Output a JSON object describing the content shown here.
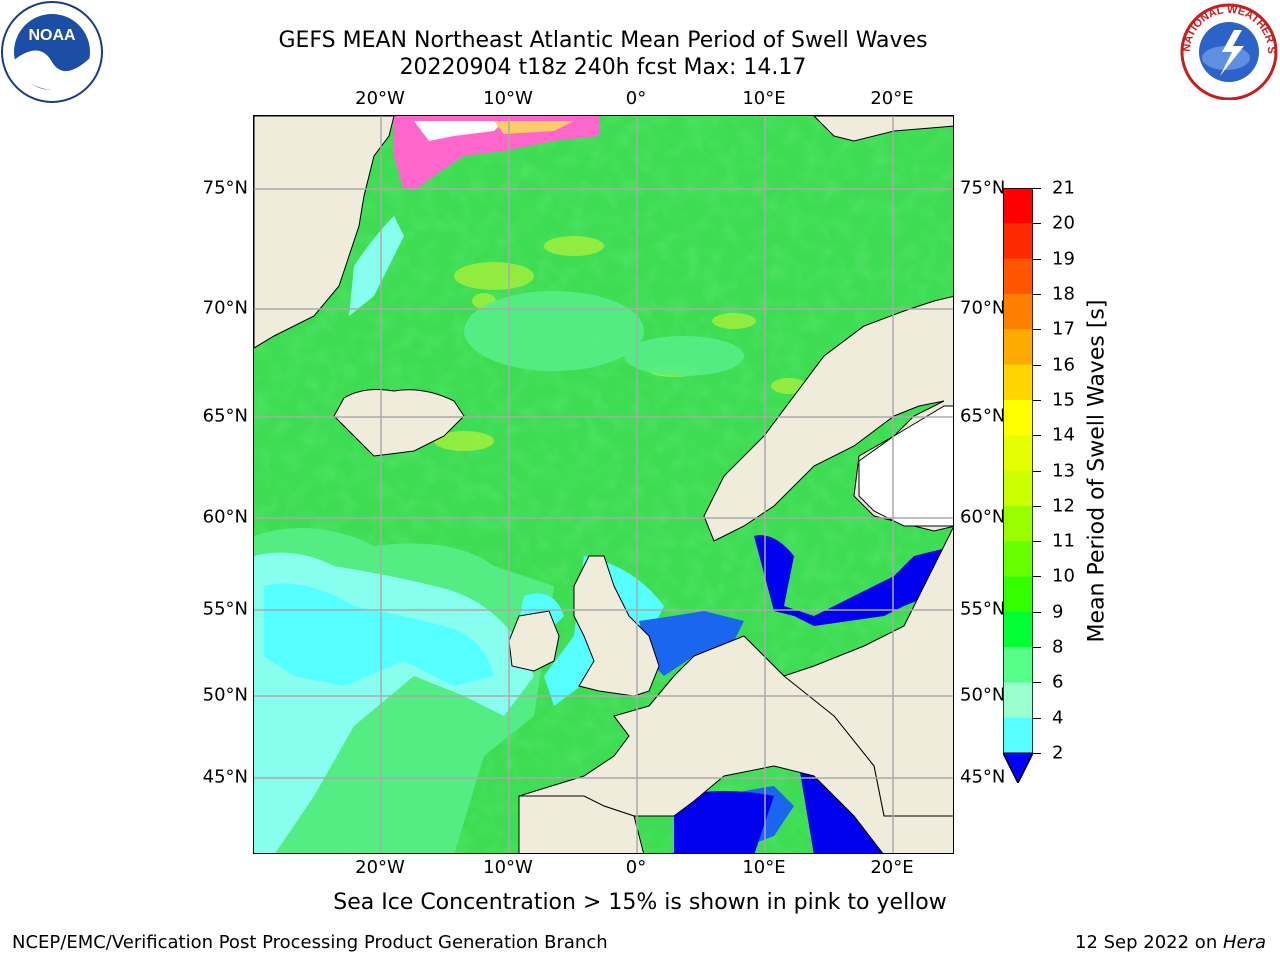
{
  "title": {
    "line1": "GEFS MEAN Northeast Atlantic Mean Period of Swell Waves",
    "line2": "20220904 t18z 240h fcst   Max: 14.17"
  },
  "axes": {
    "lon_labels": [
      "20°W",
      "10°W",
      "0°",
      "10°E",
      "20°E"
    ],
    "lat_labels": [
      "75°N",
      "70°N",
      "65°N",
      "60°N",
      "55°N",
      "50°N",
      "45°N"
    ]
  },
  "colorbar": {
    "label": "Mean Period of Swell Waves [s]",
    "ticks": [
      "21",
      "20",
      "19",
      "18",
      "17",
      "16",
      "15",
      "14",
      "13",
      "12",
      "11",
      "10",
      "9",
      "8",
      "6",
      "4",
      "2"
    ],
    "colors": [
      "#ff0000",
      "#ff2a00",
      "#ff5500",
      "#ff8000",
      "#ffaa00",
      "#ffd400",
      "#ffff00",
      "#e6ff00",
      "#ccff00",
      "#99ff00",
      "#66ff00",
      "#33ff00",
      "#00ff33",
      "#55ff88",
      "#99ffcc",
      "#55ffff",
      "#00ffff",
      "#00aaff",
      "#0000ff"
    ]
  },
  "footer": {
    "ice_note": "Sea Ice Concentration > 15% is shown in pink to yellow",
    "credit": "NCEP/EMC/Verification Post Processing Product Generation Branch",
    "date_prefix": "12 Sep 2022 on ",
    "date_machine": "Hera"
  },
  "logos": {
    "noaa": "NOAA",
    "nws": "NATIONAL WEATHER SERVICE"
  },
  "palette": {
    "land": "#efecdc",
    "grid": "#aaaaaa",
    "ocean_green": "#44e860",
    "ocean_cyan": "#66ffff"
  }
}
